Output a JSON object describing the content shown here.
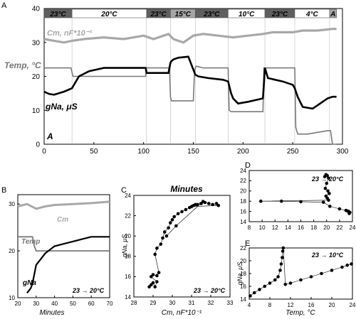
{
  "colors": {
    "gna": "#000000",
    "cm": "#a8a8a8",
    "temp": "#7a7a7a",
    "band_dark": "#5f5f5f",
    "band_mid": "#a6a6a6",
    "band_light": "#ffffff"
  },
  "panel_letters": {
    "A": "A",
    "A_inner": "A",
    "B": "B",
    "C": "C",
    "D": "D",
    "E": "E"
  },
  "chart_data": [
    {
      "panel": "A",
      "type": "line",
      "xlim": [
        0,
        300
      ],
      "ylim": [
        0,
        40
      ],
      "xticks": [
        "0",
        "50",
        "100",
        "150",
        "200",
        "250",
        "300"
      ],
      "yticks": [
        "0",
        "10",
        "20",
        "30",
        "40"
      ],
      "labels": {
        "cm": "Cm, nF*10⁻¹",
        "temp": "Temp, °C",
        "gna": "gNa, μS"
      },
      "bands": [
        {
          "x0": 0,
          "x1": 28,
          "label": "23°C",
          "shade": "dark"
        },
        {
          "x0": 28,
          "x1": 103,
          "label": "20°C",
          "shade": "light"
        },
        {
          "x0": 103,
          "x1": 127,
          "label": "23°C",
          "shade": "dark"
        },
        {
          "x0": 127,
          "x1": 152,
          "label": "15°C",
          "shade": "mid"
        },
        {
          "x0": 152,
          "x1": 185,
          "label": "23°C",
          "shade": "dark"
        },
        {
          "x0": 185,
          "x1": 222,
          "label": "10°C",
          "shade": "light"
        },
        {
          "x0": 222,
          "x1": 252,
          "label": "23°C",
          "shade": "dark"
        },
        {
          "x0": 252,
          "x1": 287,
          "label": "4°C",
          "shade": "light"
        },
        {
          "x0": 287,
          "x1": 294,
          "label": "A",
          "shade": "mid"
        }
      ],
      "dividers": [
        28,
        103,
        127,
        152,
        185,
        222,
        252,
        287
      ],
      "series": [
        {
          "name": "Cm",
          "x": [
            0,
            10,
            20,
            28,
            40,
            60,
            80,
            100,
            110,
            125,
            130,
            140,
            150,
            160,
            175,
            190,
            205,
            220,
            230,
            250,
            260,
            275,
            290,
            294
          ],
          "y": [
            31,
            30.5,
            30,
            30.5,
            31,
            31.5,
            31,
            32,
            31,
            32.5,
            31,
            30,
            32,
            32.5,
            32,
            31.5,
            32,
            32.5,
            33,
            33,
            33.5,
            33.5,
            34,
            34
          ]
        },
        {
          "name": "Temp",
          "x": [
            0,
            27,
            29,
            50,
            80,
            100,
            102,
            103,
            125,
            126,
            127,
            128,
            130,
            150,
            151,
            152,
            153,
            160,
            183,
            185,
            186,
            188,
            190,
            195,
            220,
            221,
            222,
            223,
            250,
            252,
            253,
            255,
            265,
            285,
            288,
            290,
            294
          ],
          "y": [
            22.5,
            22.5,
            20,
            20,
            20,
            20,
            20,
            22.5,
            22.5,
            22.5,
            14,
            12.8,
            12.8,
            12.8,
            20,
            22.5,
            23,
            22.5,
            22.5,
            22.5,
            10,
            9.6,
            9.6,
            9.6,
            9.6,
            22.5,
            22.5,
            22.5,
            22.5,
            22.5,
            5,
            3,
            3,
            4,
            4,
            0,
            0
          ]
        },
        {
          "name": "gNa",
          "x": [
            0,
            5,
            10,
            20,
            28,
            35,
            45,
            60,
            80,
            100,
            102,
            103,
            110,
            125,
            127,
            128,
            130,
            135,
            145,
            152,
            155,
            165,
            180,
            185,
            188,
            190,
            195,
            205,
            220,
            222,
            225,
            240,
            250,
            252,
            255,
            260,
            270,
            285,
            290,
            294
          ],
          "y": [
            15.5,
            14.8,
            14.6,
            15.5,
            16.5,
            20,
            21.5,
            22.5,
            22.5,
            22.5,
            22.5,
            21,
            21,
            21,
            24,
            24.5,
            25,
            25.5,
            25.8,
            20.5,
            20,
            19.5,
            19,
            18.5,
            15,
            13.5,
            12,
            12.5,
            13.5,
            22.5,
            19.5,
            18.5,
            17.5,
            16.5,
            14,
            11,
            10.5,
            13.5,
            14,
            14
          ]
        }
      ]
    },
    {
      "panel": "B",
      "type": "line",
      "xlim": [
        20,
        70
      ],
      "ylim": [
        10,
        32
      ],
      "xticks": [
        "20",
        "30",
        "40",
        "50",
        "60",
        "70"
      ],
      "yticks": [
        "10",
        "20",
        "30"
      ],
      "xlabel": "Minutes",
      "labels": {
        "cm": "Cm",
        "temp": "Temp",
        "gna": "gNa",
        "transition": "23 → 20°C"
      },
      "series": [
        {
          "name": "Cm",
          "x": [
            20,
            25,
            30,
            35,
            40,
            50,
            60,
            70
          ],
          "y": [
            29.5,
            30,
            29,
            29.5,
            29.8,
            30,
            30.2,
            30.5
          ]
        },
        {
          "name": "Temp",
          "x": [
            20,
            26,
            28,
            29,
            30,
            40,
            50,
            60,
            70
          ],
          "y": [
            23,
            23,
            23,
            21,
            20,
            20,
            20,
            20,
            20
          ]
        },
        {
          "name": "gNa",
          "x": [
            25,
            27,
            28,
            29,
            30,
            35,
            40,
            45,
            50,
            55,
            60,
            65,
            70
          ],
          "y": [
            11,
            12,
            13,
            15,
            17,
            19.5,
            21,
            21.5,
            22,
            22.5,
            23,
            23,
            23
          ]
        }
      ]
    },
    {
      "panel": "C",
      "type": "scatter",
      "title": "Minutes",
      "xlim": [
        28,
        33
      ],
      "ylim": [
        14,
        24
      ],
      "xticks": [
        "28",
        "29",
        "30",
        "31",
        "32",
        "33"
      ],
      "yticks": [
        "14",
        "16",
        "18",
        "20",
        "22",
        "24"
      ],
      "xlabel": "Cm, nF*10⁻¹",
      "ylabel": "gNa, μS",
      "transition": "23 → 20°C",
      "x": [
        28.8,
        28.9,
        29.0,
        29.1,
        29.2,
        28.9,
        29.0,
        29.2,
        29.3,
        29.1,
        29.2,
        29.4,
        29.5,
        29.6,
        29.8,
        29.9,
        30.0,
        30.1,
        30.3,
        30.5,
        30.7,
        30.9,
        31.1,
        31.3,
        31.5,
        31.7,
        31.9,
        32.1,
        32.3,
        32.4,
        31.0,
        31.2,
        31.6,
        30.2,
        29.7
      ],
      "y": [
        15.0,
        15.2,
        15.4,
        15.0,
        15.5,
        16.0,
        16.2,
        16.1,
        16.4,
        18.2,
        18.8,
        19.2,
        19.8,
        20.4,
        20.8,
        21.3,
        21.6,
        21.9,
        22.2,
        22.4,
        22.6,
        22.8,
        23.0,
        23.1,
        23.2,
        23.3,
        23.2,
        23.1,
        23.2,
        23.0,
        22.9,
        23.1,
        23.4,
        21.0,
        20.0
      ]
    },
    {
      "panel": "D",
      "type": "scatter",
      "xlim": [
        8,
        24
      ],
      "ylim": [
        14,
        24
      ],
      "xticks": [
        "8",
        "10",
        "12",
        "14",
        "16",
        "18",
        "20",
        "22",
        "24"
      ],
      "yticks": [
        "14",
        "16",
        "18",
        "20",
        "22",
        "24"
      ],
      "transition": "23 → 20°C",
      "x": [
        19.7,
        19.9,
        20.1,
        20.3,
        20.0,
        19.8,
        20.2,
        20.4,
        19.9,
        20.1,
        20.3,
        9.8,
        13.0,
        16.0,
        19.5,
        20.5,
        22.0,
        23.0,
        23.4,
        23.6,
        23.5,
        23.2
      ],
      "y": [
        22.8,
        23.2,
        23.0,
        22.5,
        21.5,
        20.5,
        20.0,
        19.5,
        19.0,
        18.6,
        18.2,
        18.0,
        18.0,
        17.9,
        17.8,
        17.0,
        16.5,
        16.2,
        16.0,
        15.8,
        15.6,
        16.1
      ]
    },
    {
      "panel": "E",
      "type": "scatter",
      "xlim": [
        4,
        24
      ],
      "ylim": [
        14,
        22
      ],
      "xticks": [
        "4",
        "8",
        "12",
        "16",
        "20",
        "24"
      ],
      "yticks": [
        "14",
        "16",
        "18",
        "20",
        "22"
      ],
      "xlabel": "Temp, °C",
      "ylabel": "gNa, μS",
      "transition": "23 → 10°C",
      "x": [
        4.2,
        5,
        6,
        7,
        8,
        9,
        9.6,
        10,
        10.2,
        10.4,
        10.5,
        10.6,
        11,
        12,
        14,
        16,
        18,
        20,
        22,
        23,
        23.8
      ],
      "y": [
        14.5,
        15,
        15.5,
        16,
        16.5,
        17,
        17.5,
        18.5,
        19.5,
        20.5,
        21.5,
        22,
        16.3,
        16.5,
        17,
        17.5,
        18,
        18.5,
        19,
        19.3,
        19.5
      ]
    }
  ]
}
